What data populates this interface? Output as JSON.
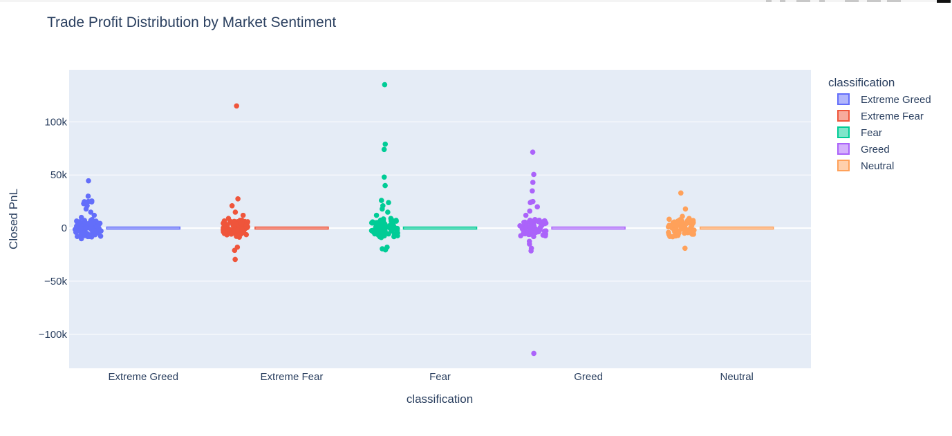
{
  "chart_data": {
    "type": "box",
    "title": "Trade Profit Distribution by Market Sentiment",
    "xlabel": "classification",
    "ylabel": "Closed PnL",
    "categories": [
      "Extreme Greed",
      "Extreme Fear",
      "Fear",
      "Greed",
      "Neutral"
    ],
    "yticks": [
      {
        "value": 100000,
        "label": "100k"
      },
      {
        "value": 50000,
        "label": "50k"
      },
      {
        "value": 0,
        "label": "0"
      },
      {
        "value": -50000,
        "label": "−50k"
      },
      {
        "value": -100000,
        "label": "−100k"
      }
    ],
    "ylim": [
      -132000,
      149000
    ],
    "grid": true,
    "legend": {
      "title": "classification",
      "placement": "top-right"
    },
    "series": [
      {
        "name": "Extreme Greed",
        "color": "#636efa",
        "points": [
          44500,
          30000,
          25500,
          25000,
          24800,
          24600,
          24300,
          23000,
          21000,
          18000,
          15000,
          12000,
          10000,
          8000,
          6000,
          4000,
          2000,
          1000,
          0,
          -1000,
          -2500,
          -4000,
          -6000,
          -8000,
          -10000
        ]
      },
      {
        "name": "Extreme Fear",
        "color": "#ef553b",
        "points": [
          115000,
          27500,
          21000,
          15000,
          12000,
          9000,
          6000,
          4000,
          2000,
          1000,
          0,
          -1000,
          -2500,
          -4000,
          -5500,
          -18000,
          -21000,
          -29500
        ]
      },
      {
        "name": "Fear",
        "color": "#00cc96",
        "points": [
          135000,
          79000,
          74000,
          48000,
          40000,
          26000,
          24000,
          21000,
          18000,
          15000,
          12000,
          9000,
          6000,
          4000,
          2000,
          0,
          -2000,
          -4000,
          -6000,
          -18000,
          -19500,
          -20500
        ]
      },
      {
        "name": "Greed",
        "color": "#ab63fa",
        "points": [
          71500,
          50500,
          43000,
          35000,
          25000,
          24500,
          24000,
          20000,
          16000,
          12000,
          8000,
          5000,
          2000,
          0,
          -2000,
          -4000,
          -6000,
          -8000,
          -12500,
          -15000,
          -19000,
          -21500,
          -118000
        ]
      },
      {
        "name": "Neutral",
        "color": "#ffa15a",
        "points": [
          33000,
          18000,
          11000,
          9000,
          6000,
          4000,
          2000,
          0,
          -1500,
          -3000,
          -4500,
          -19000
        ]
      }
    ]
  }
}
